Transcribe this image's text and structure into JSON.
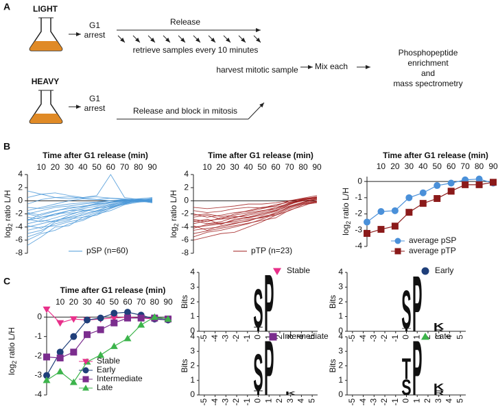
{
  "panel_labels": [
    "A",
    "B",
    "C"
  ],
  "diagram": {
    "light": "LIGHT",
    "heavy": "HEAVY",
    "g1_arrest_light": [
      "G1",
      "arrest"
    ],
    "g1_arrest_heavy": [
      "G1",
      "arrest"
    ],
    "release": "Release",
    "retrieve": "retrieve samples every 10 minutes",
    "harvest": "harvest mitotic sample",
    "release_block": "Release and block in mitosis",
    "mix": "Mix each",
    "output": [
      "Phosphopeptide",
      "enrichment",
      "and",
      "mass spectrometry"
    ]
  },
  "chart_data": [
    {
      "type": "spaghetti",
      "title": "Time after G1 release (min)",
      "ylabel": {
        "base": "log",
        "sub": "2",
        "rest": " ratio L/H"
      },
      "x": [
        0,
        10,
        20,
        30,
        40,
        50,
        60,
        70,
        80,
        90
      ],
      "xlim": [
        0,
        90
      ],
      "xticks": [
        10,
        20,
        30,
        40,
        50,
        60,
        70,
        80,
        90
      ],
      "ylim": [
        -8,
        4
      ],
      "yticks": [
        -8,
        -6,
        -4,
        -2,
        0,
        2,
        4
      ],
      "color": "#4a98d8",
      "legend": "pSP (n=60)",
      "series": [
        {
          "values": [
            -2,
            -1.5,
            -1,
            -0.8,
            -0.5,
            -0.3,
            0,
            0.1,
            0.2,
            0.3
          ]
        },
        {
          "values": [
            -3,
            -2.5,
            -2,
            -1.5,
            -1,
            -0.5,
            -0.2,
            0,
            0.2,
            0.1
          ]
        },
        {
          "values": [
            -4,
            -3.5,
            -3,
            -2.5,
            -1.8,
            -1,
            -0.5,
            -0.2,
            0,
            0.2
          ]
        },
        {
          "values": [
            -5,
            -4.5,
            -3.5,
            -3,
            -2,
            -1.5,
            -0.8,
            -0.3,
            0.1,
            0
          ]
        },
        {
          "values": [
            -6,
            -5,
            -4.5,
            -3.5,
            -3,
            -2,
            -1,
            -0.5,
            0,
            0.3
          ]
        },
        {
          "values": [
            -1,
            -1.2,
            -0.8,
            -0.5,
            -0.3,
            -0.2,
            0,
            0.2,
            0.3,
            0.1
          ]
        },
        {
          "values": [
            -2.5,
            -2.8,
            -2,
            -1.8,
            -1.2,
            -0.8,
            -0.3,
            0,
            0.2,
            -0.2
          ]
        },
        {
          "values": [
            -0.5,
            0.2,
            0.5,
            0.3,
            0.5,
            0.8,
            4,
            0.5,
            0.2,
            0
          ]
        },
        {
          "values": [
            -3.5,
            -3,
            -3.2,
            -2.2,
            -1.5,
            -1.2,
            -0.6,
            -0.2,
            0,
            -0.3
          ]
        },
        {
          "values": [
            -1.5,
            -1,
            -0.5,
            0,
            0.3,
            0.2,
            0.4,
            0.3,
            0.1,
            -0.1
          ]
        },
        {
          "values": [
            -6.8,
            -5.5,
            -4,
            -3.8,
            -2.5,
            -2.2,
            -1.2,
            -0.4,
            -0.1,
            0
          ]
        },
        {
          "values": [
            -2,
            -2.5,
            -2.2,
            -1.5,
            -1.4,
            -1.6,
            -0.7,
            -0.1,
            0.1,
            -0.2
          ]
        },
        {
          "values": [
            0.5,
            1,
            1.2,
            0.8,
            0.5,
            0.6,
            0.4,
            0.2,
            0,
            -0.3
          ]
        },
        {
          "values": [
            -4.5,
            -4,
            -3.8,
            -3.2,
            -2.8,
            -2,
            -1.5,
            -0.6,
            -0.2,
            0.2
          ]
        },
        {
          "values": [
            -3,
            -2,
            -1.5,
            -1.2,
            -0.8,
            -0.6,
            -0.2,
            0.1,
            0,
            0.4
          ]
        },
        {
          "values": [
            -5.5,
            -4.8,
            -3.2,
            -2.8,
            -2.5,
            -1.8,
            -1,
            -0.4,
            0.3,
            0.5
          ]
        },
        {
          "values": [
            -1.8,
            -2.2,
            -1.6,
            -1,
            -0.9,
            -0.4,
            -0.3,
            -0.1,
            0.2,
            0
          ]
        },
        {
          "values": [
            -2.8,
            -3.2,
            -2.6,
            -2,
            -1.6,
            -1.1,
            -0.9,
            -0.3,
            -0.1,
            0.2
          ]
        },
        {
          "values": [
            1.5,
            1,
            0.5,
            0.6,
            0.4,
            0.2,
            0,
            0.1,
            -0.2,
            -0.1
          ]
        },
        {
          "values": [
            -3.8,
            -4.2,
            -3,
            -2.6,
            -2.2,
            -1.6,
            -1.1,
            -0.5,
            0,
            0.1
          ]
        }
      ]
    },
    {
      "type": "spaghetti",
      "title": "Time after G1 release (min)",
      "ylabel": {
        "base": "log",
        "sub": "2",
        "rest": " ratio L/H"
      },
      "x": [
        0,
        10,
        20,
        30,
        40,
        50,
        60,
        70,
        80,
        90
      ],
      "xlim": [
        0,
        90
      ],
      "xticks": [
        10,
        20,
        30,
        40,
        50,
        60,
        70,
        80,
        90
      ],
      "ylim": [
        -8,
        4
      ],
      "yticks": [
        -8,
        -6,
        -4,
        -2,
        0,
        2,
        4
      ],
      "color": "#a01c1c",
      "legend": "pTP (n=23)",
      "series": [
        {
          "values": [
            -2.5,
            -2.2,
            -2.8,
            -2,
            -1.5,
            -1,
            -0.8,
            0,
            0.3,
            0.5
          ]
        },
        {
          "values": [
            -3,
            -3.5,
            -3.2,
            -2.5,
            -2.2,
            -1.8,
            -1.2,
            -0.3,
            0,
            0.3
          ]
        },
        {
          "values": [
            -4,
            -3.8,
            -3.5,
            -3,
            -2.5,
            -2,
            -1.5,
            -0.8,
            -0.2,
            0.2
          ]
        },
        {
          "values": [
            -1,
            -1.2,
            -1,
            -0.8,
            -0.5,
            -0.5,
            -0.3,
            0,
            0.2,
            0.6
          ]
        },
        {
          "values": [
            -5.5,
            -4.8,
            -4.5,
            -4,
            -3.5,
            -2.8,
            -2,
            -1,
            -0.3,
            0
          ]
        },
        {
          "values": [
            -3.5,
            -3,
            -2.8,
            -2.6,
            -2,
            -1.6,
            -1,
            -0.4,
            0.2,
            0.4
          ]
        },
        {
          "values": [
            -2,
            -2.5,
            -2.2,
            -1.8,
            -1.6,
            -1.2,
            -0.8,
            0,
            0.4,
            0.8
          ]
        },
        {
          "values": [
            -4.5,
            -4.2,
            -4,
            -3.5,
            -3,
            -2.5,
            -2.2,
            -1.2,
            -0.5,
            -0.2
          ]
        },
        {
          "values": [
            -6,
            -5.5,
            -5,
            -4.8,
            -4,
            -3.2,
            -2.2,
            -1.5,
            -0.6,
            -0.3
          ]
        },
        {
          "values": [
            -2.8,
            -3.2,
            -2.6,
            -2.4,
            -2.5,
            -2,
            -1.4,
            -0.5,
            0,
            0.2
          ]
        },
        {
          "values": [
            -1.5,
            -1.8,
            -1.6,
            -1.2,
            -1,
            -1.1,
            -0.6,
            -0.2,
            0.1,
            0.5
          ]
        },
        {
          "values": [
            -3.2,
            -2.8,
            -3.6,
            -2.8,
            -2.6,
            -2.2,
            -1.6,
            -0.6,
            0.2,
            0.4
          ]
        },
        {
          "values": [
            -4.2,
            -3.6,
            -3.4,
            -3.2,
            -2.8,
            -2.6,
            -1.8,
            -0.9,
            -0.2,
            0.2
          ]
        },
        {
          "values": [
            -3.8,
            -4.5,
            -3.8,
            -3.4,
            -3.1,
            -2.4,
            -2,
            -1,
            -0.4,
            -0.1
          ]
        },
        {
          "values": [
            -2.2,
            -2,
            -2.4,
            -2.2,
            -1.8,
            -1.5,
            -1.2,
            -0.5,
            0.3,
            0.6
          ]
        },
        {
          "values": [
            -5,
            -4.6,
            -4.2,
            -3.8,
            -3.4,
            -3,
            -2.6,
            -1.4,
            -0.8,
            0
          ]
        }
      ]
    },
    {
      "type": "line",
      "title": "Time after G1 release (min)",
      "ylabel": {
        "base": "log",
        "sub": "2",
        "rest": " ratio L/H"
      },
      "x": [
        0,
        10,
        20,
        30,
        40,
        50,
        60,
        70,
        80,
        90
      ],
      "xlim": [
        0,
        90
      ],
      "xticks": [
        10,
        20,
        30,
        40,
        50,
        60,
        70,
        80,
        90
      ],
      "ylim": [
        -4,
        0.3
      ],
      "yticks": [
        -4,
        -3,
        -2,
        -1,
        0
      ],
      "series": [
        {
          "name": "average pSP",
          "color": "#4a90d9",
          "marker": "circle",
          "values": [
            -2.5,
            -1.85,
            -1.8,
            -1.0,
            -0.7,
            -0.25,
            -0.1,
            0.1,
            0.15,
            -0.1
          ]
        },
        {
          "name": "average pTP",
          "color": "#8b1a1a",
          "marker": "square",
          "values": [
            -3.2,
            -2.95,
            -2.75,
            -1.9,
            -1.35,
            -1.05,
            -0.6,
            -0.2,
            -0.2,
            -0.05
          ]
        }
      ]
    },
    {
      "type": "line",
      "title": "Time after G1 release (min)",
      "ylabel": {
        "base": "log",
        "sub": "2",
        "rest": " ratio L/H"
      },
      "x": [
        0,
        10,
        20,
        30,
        40,
        50,
        60,
        70,
        80,
        90
      ],
      "xlim": [
        0,
        90
      ],
      "xticks": [
        10,
        20,
        30,
        40,
        50,
        60,
        70,
        80,
        90
      ],
      "ylim": [
        -4,
        0.5
      ],
      "yticks": [
        -4,
        -3,
        -2,
        -1,
        0
      ],
      "series": [
        {
          "name": "Stable",
          "color": "#e8308a",
          "marker": "triangle-down",
          "values": [
            0.4,
            -0.3,
            -0.1,
            -0.15,
            -0.1,
            -0.05,
            0,
            -0.05,
            -0.1,
            -0.15
          ]
        },
        {
          "name": "Early",
          "color": "#1f3f7a",
          "marker": "circle",
          "values": [
            -3.0,
            -1.8,
            -1.0,
            -0.15,
            -0.05,
            0.2,
            0.25,
            0.1,
            -0.1,
            -0.15
          ]
        },
        {
          "name": "Intermediate",
          "color": "#7b2d8e",
          "marker": "square",
          "values": [
            -2.05,
            -2.1,
            -1.8,
            -0.9,
            -0.65,
            -0.3,
            -0.05,
            -0.05,
            -0.05,
            -0.1
          ]
        },
        {
          "name": "Late",
          "color": "#3cb44b",
          "marker": "triangle-up",
          "values": [
            -3.25,
            -2.8,
            -3.35,
            -2.3,
            -1.95,
            -1.5,
            -1.1,
            -0.4,
            0.0,
            -0.1
          ]
        }
      ]
    },
    {
      "type": "logo",
      "ylabel": "Bits",
      "legend": "Stable",
      "marker": "triangle-down",
      "marker_color": "#e8308a",
      "xlim": [
        -5.5,
        5.5
      ],
      "xticks": [
        -5,
        -4,
        -3,
        -2,
        -1,
        0,
        1,
        2,
        3,
        4,
        5
      ],
      "ylim": [
        0,
        4
      ],
      "yticks": [
        0,
        1,
        2,
        3,
        4
      ],
      "letters": [
        {
          "x": 0,
          "letter": "T",
          "bits": 0.3,
          "color": "#33b33b"
        },
        {
          "x": 0,
          "letter": "S",
          "bits": 2.7,
          "color": "#33b33b"
        },
        {
          "x": 1,
          "letter": "P",
          "bits": 4.0,
          "color": "#000000"
        }
      ]
    },
    {
      "type": "logo",
      "ylabel": "Bits",
      "legend": "Early",
      "marker": "circle",
      "marker_color": "#1f3f7a",
      "xlim": [
        -5.5,
        5.5
      ],
      "xticks": [
        -5,
        -4,
        -3,
        -2,
        -1,
        0,
        1,
        2,
        3,
        4,
        5
      ],
      "ylim": [
        0,
        4
      ],
      "yticks": [
        0,
        1,
        2,
        3,
        4
      ],
      "letters": [
        {
          "x": 0,
          "letter": "T",
          "bits": 0.2,
          "color": "#33b33b"
        },
        {
          "x": 0,
          "letter": "S",
          "bits": 2.7,
          "color": "#33b33b"
        },
        {
          "x": 1,
          "letter": "P",
          "bits": 3.9,
          "color": "#000000"
        },
        {
          "x": 3,
          "letter": "R",
          "bits": 0.15,
          "color": "#3a3ab5"
        },
        {
          "x": 3,
          "letter": "K",
          "bits": 0.45,
          "color": "#3a3ab5"
        }
      ]
    },
    {
      "type": "logo",
      "ylabel": "Bits",
      "legend": "Intermediate",
      "marker": "square",
      "marker_color": "#7b2d8e",
      "xlim": [
        -5.5,
        5.5
      ],
      "xticks": [
        -5,
        -4,
        -3,
        -2,
        -1,
        0,
        1,
        2,
        3,
        4,
        5
      ],
      "ylim": [
        0,
        4
      ],
      "yticks": [
        0,
        1,
        2,
        3,
        4
      ],
      "letters": [
        {
          "x": 0,
          "letter": "T",
          "bits": 0.3,
          "color": "#33b33b"
        },
        {
          "x": 0,
          "letter": "S",
          "bits": 2.6,
          "color": "#33b33b"
        },
        {
          "x": 1,
          "letter": "P",
          "bits": 3.9,
          "color": "#000000"
        },
        {
          "x": 3,
          "letter": "K",
          "bits": 0.25,
          "color": "#3a3ab5"
        }
      ]
    },
    {
      "type": "logo",
      "ylabel": "Bits",
      "legend": "Late",
      "marker": "triangle-up",
      "marker_color": "#3cb44b",
      "xlim": [
        -5.5,
        5.5
      ],
      "xticks": [
        -5,
        -4,
        -3,
        -2,
        -1,
        0,
        1,
        2,
        3,
        4,
        5
      ],
      "ylim": [
        0,
        4
      ],
      "yticks": [
        0,
        1,
        2,
        3,
        4
      ],
      "letters": [
        {
          "x": 0,
          "letter": "S",
          "bits": 1.1,
          "color": "#33b33b"
        },
        {
          "x": 0,
          "letter": "T",
          "bits": 1.5,
          "color": "#33b33b"
        },
        {
          "x": 1,
          "letter": "P",
          "bits": 3.9,
          "color": "#000000"
        },
        {
          "x": 3,
          "letter": "R",
          "bits": 0.3,
          "color": "#3a3ab5"
        },
        {
          "x": 3,
          "letter": "K",
          "bits": 0.5,
          "color": "#3a3ab5"
        }
      ]
    }
  ]
}
